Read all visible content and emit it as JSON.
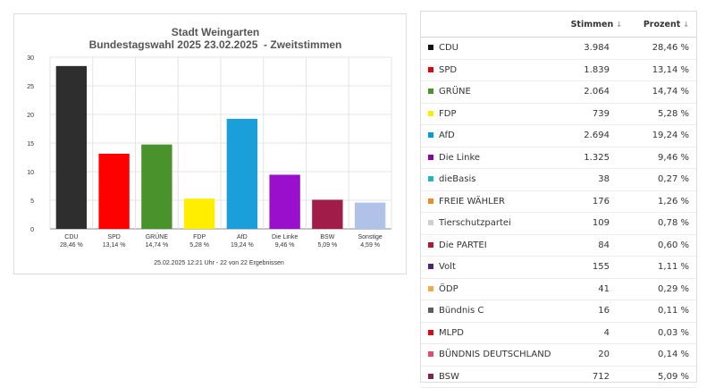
{
  "chart_data": {
    "type": "bar",
    "title": "Stadt Weingarten",
    "subtitle": "Bundestagswahl 2025 23.02.2025  - Zweitstimmen",
    "categories": [
      "CDU",
      "SPD",
      "GRÜNE",
      "FDP",
      "AfD",
      "Die Linke",
      "BSW",
      "Sonstige"
    ],
    "values": [
      28.46,
      13.14,
      14.74,
      5.28,
      19.24,
      9.46,
      5.09,
      4.59
    ],
    "value_labels": [
      "28,46 %",
      "13,14 %",
      "14,74 %",
      "5,28 %",
      "19,24 %",
      "9,46 %",
      "5,09 %",
      "4,59 %"
    ],
    "colors": [
      "#2e2e2e",
      "#ff0000",
      "#4a922c",
      "#ffee00",
      "#1a9fdb",
      "#9a0fcb",
      "#a11c48",
      "#b1c2e8"
    ],
    "ylim": [
      0,
      30
    ],
    "yticks": [
      0,
      5,
      10,
      15,
      20,
      25,
      30
    ],
    "grid": true,
    "xlabel": "",
    "ylabel": "",
    "footnote": "25.02.2025 12:21 Uhr - 22 von 22 Ergebnissen"
  },
  "table": {
    "headers": {
      "stimmen": "Stimmen",
      "prozent": "Prozent"
    },
    "sort_icon": "↓",
    "rows": [
      {
        "name": "CDU",
        "stimmen": "3.984",
        "prozent": "28,46 %",
        "color": "#111111"
      },
      {
        "name": "SPD",
        "stimmen": "1.839",
        "prozent": "13,14 %",
        "color": "#e3000f"
      },
      {
        "name": "GRÜNE",
        "stimmen": "2.064",
        "prozent": "14,74 %",
        "color": "#46962b"
      },
      {
        "name": "FDP",
        "stimmen": "739",
        "prozent": "5,28 %",
        "color": "#ffed00"
      },
      {
        "name": "AfD",
        "stimmen": "2.694",
        "prozent": "19,24 %",
        "color": "#009ee0"
      },
      {
        "name": "Die Linke",
        "stimmen": "1.325",
        "prozent": "9,46 %",
        "color": "#8a00a8"
      },
      {
        "name": "dieBasis",
        "stimmen": "38",
        "prozent": "0,27 %",
        "color": "#1fb4c8"
      },
      {
        "name": "FREIE WÄHLER",
        "stimmen": "176",
        "prozent": "1,26 %",
        "color": "#f08a24"
      },
      {
        "name": "Tierschutzpartei",
        "stimmen": "109",
        "prozent": "0,78 %",
        "color": "#cfcfcf"
      },
      {
        "name": "Die PARTEI",
        "stimmen": "84",
        "prozent": "0,60 %",
        "color": "#b5152b"
      },
      {
        "name": "Volt",
        "stimmen": "155",
        "prozent": "1,11 %",
        "color": "#502379"
      },
      {
        "name": "ÖDP",
        "stimmen": "41",
        "prozent": "0,29 %",
        "color": "#f7a746"
      },
      {
        "name": "Bündnis C",
        "stimmen": "16",
        "prozent": "0,11 %",
        "color": "#5d5d5d"
      },
      {
        "name": "MLPD",
        "stimmen": "4",
        "prozent": "0,03 %",
        "color": "#e30613"
      },
      {
        "name": "BÜNDNIS DEUTSCHLAND",
        "stimmen": "20",
        "prozent": "0,14 %",
        "color": "#e84a6a"
      },
      {
        "name": "BSW",
        "stimmen": "712",
        "prozent": "5,09 %",
        "color": "#7d254f"
      }
    ]
  }
}
